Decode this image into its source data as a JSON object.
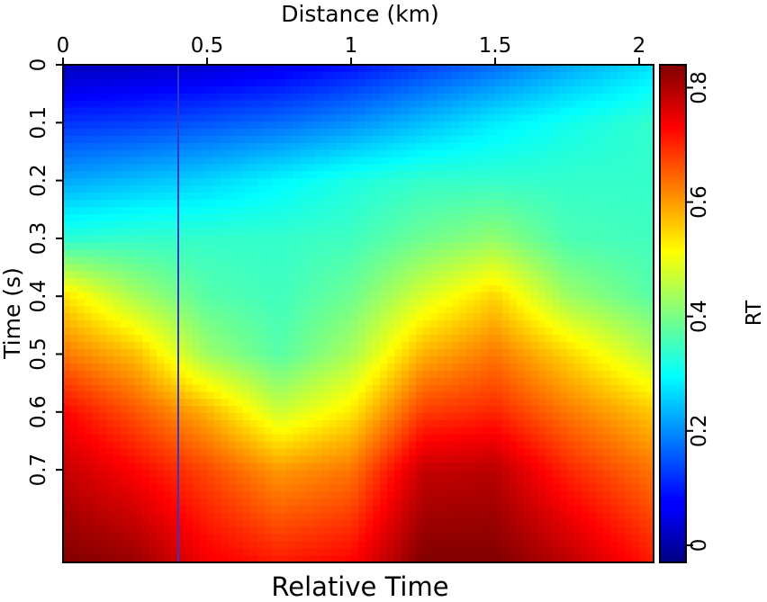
{
  "chart_data": {
    "type": "heatmap",
    "title": "Relative Time",
    "xlabel": "Distance (km)",
    "ylabel": "Time (s)",
    "colorbar_label": "RT",
    "xlim": [
      0,
      2.05
    ],
    "ylim": [
      0,
      0.86
    ],
    "y_inverted": true,
    "x_axis_position": "top",
    "x_ticks": [
      0,
      0.5,
      1,
      1.5,
      2
    ],
    "x_tick_labels": [
      "0",
      "0.5",
      "1",
      "1.5",
      "2"
    ],
    "y_ticks": [
      0,
      0.1,
      0.2,
      0.3,
      0.4,
      0.5,
      0.6,
      0.7
    ],
    "y_tick_labels": [
      "0",
      "0.1",
      "0.2",
      "0.3",
      "0.4",
      "0.5",
      "0.6",
      "0.7"
    ],
    "colorbar_range": [
      -0.03,
      0.84
    ],
    "colorbar_ticks": [
      0,
      0.2,
      0.4,
      0.6,
      0.8
    ],
    "colorbar_tick_labels": [
      "0",
      "0.2",
      "0.4",
      "0.6",
      "0.8"
    ],
    "colormap": "jet",
    "vertical_line_x": 0.4,
    "vertical_line_color": "#3535c8",
    "field_samples": {
      "x": [
        0,
        0.25,
        0.5,
        0.75,
        1.0,
        1.25,
        1.5,
        1.75,
        2.05
      ],
      "t": [
        0,
        0.1,
        0.2,
        0.3,
        0.4,
        0.5,
        0.6,
        0.7,
        0.86
      ],
      "rt": [
        [
          0.02,
          0.03,
          0.04,
          0.06,
          0.09,
          0.13,
          0.17,
          0.22,
          0.27
        ],
        [
          0.12,
          0.13,
          0.15,
          0.17,
          0.2,
          0.24,
          0.28,
          0.31,
          0.34
        ],
        [
          0.22,
          0.24,
          0.26,
          0.29,
          0.32,
          0.34,
          0.34,
          0.34,
          0.34
        ],
        [
          0.33,
          0.34,
          0.34,
          0.34,
          0.35,
          0.39,
          0.42,
          0.36,
          0.35
        ],
        [
          0.54,
          0.44,
          0.37,
          0.35,
          0.39,
          0.48,
          0.55,
          0.43,
          0.37
        ],
        [
          0.63,
          0.57,
          0.43,
          0.37,
          0.44,
          0.58,
          0.63,
          0.55,
          0.45
        ],
        [
          0.73,
          0.66,
          0.58,
          0.47,
          0.53,
          0.68,
          0.7,
          0.63,
          0.56
        ],
        [
          0.78,
          0.73,
          0.67,
          0.6,
          0.63,
          0.78,
          0.79,
          0.7,
          0.63
        ],
        [
          0.84,
          0.82,
          0.74,
          0.71,
          0.73,
          0.84,
          0.84,
          0.79,
          0.71
        ]
      ]
    }
  },
  "colors": {
    "vertical_line": "#3535c8",
    "background": "#ffffff",
    "axis": "#000000"
  }
}
